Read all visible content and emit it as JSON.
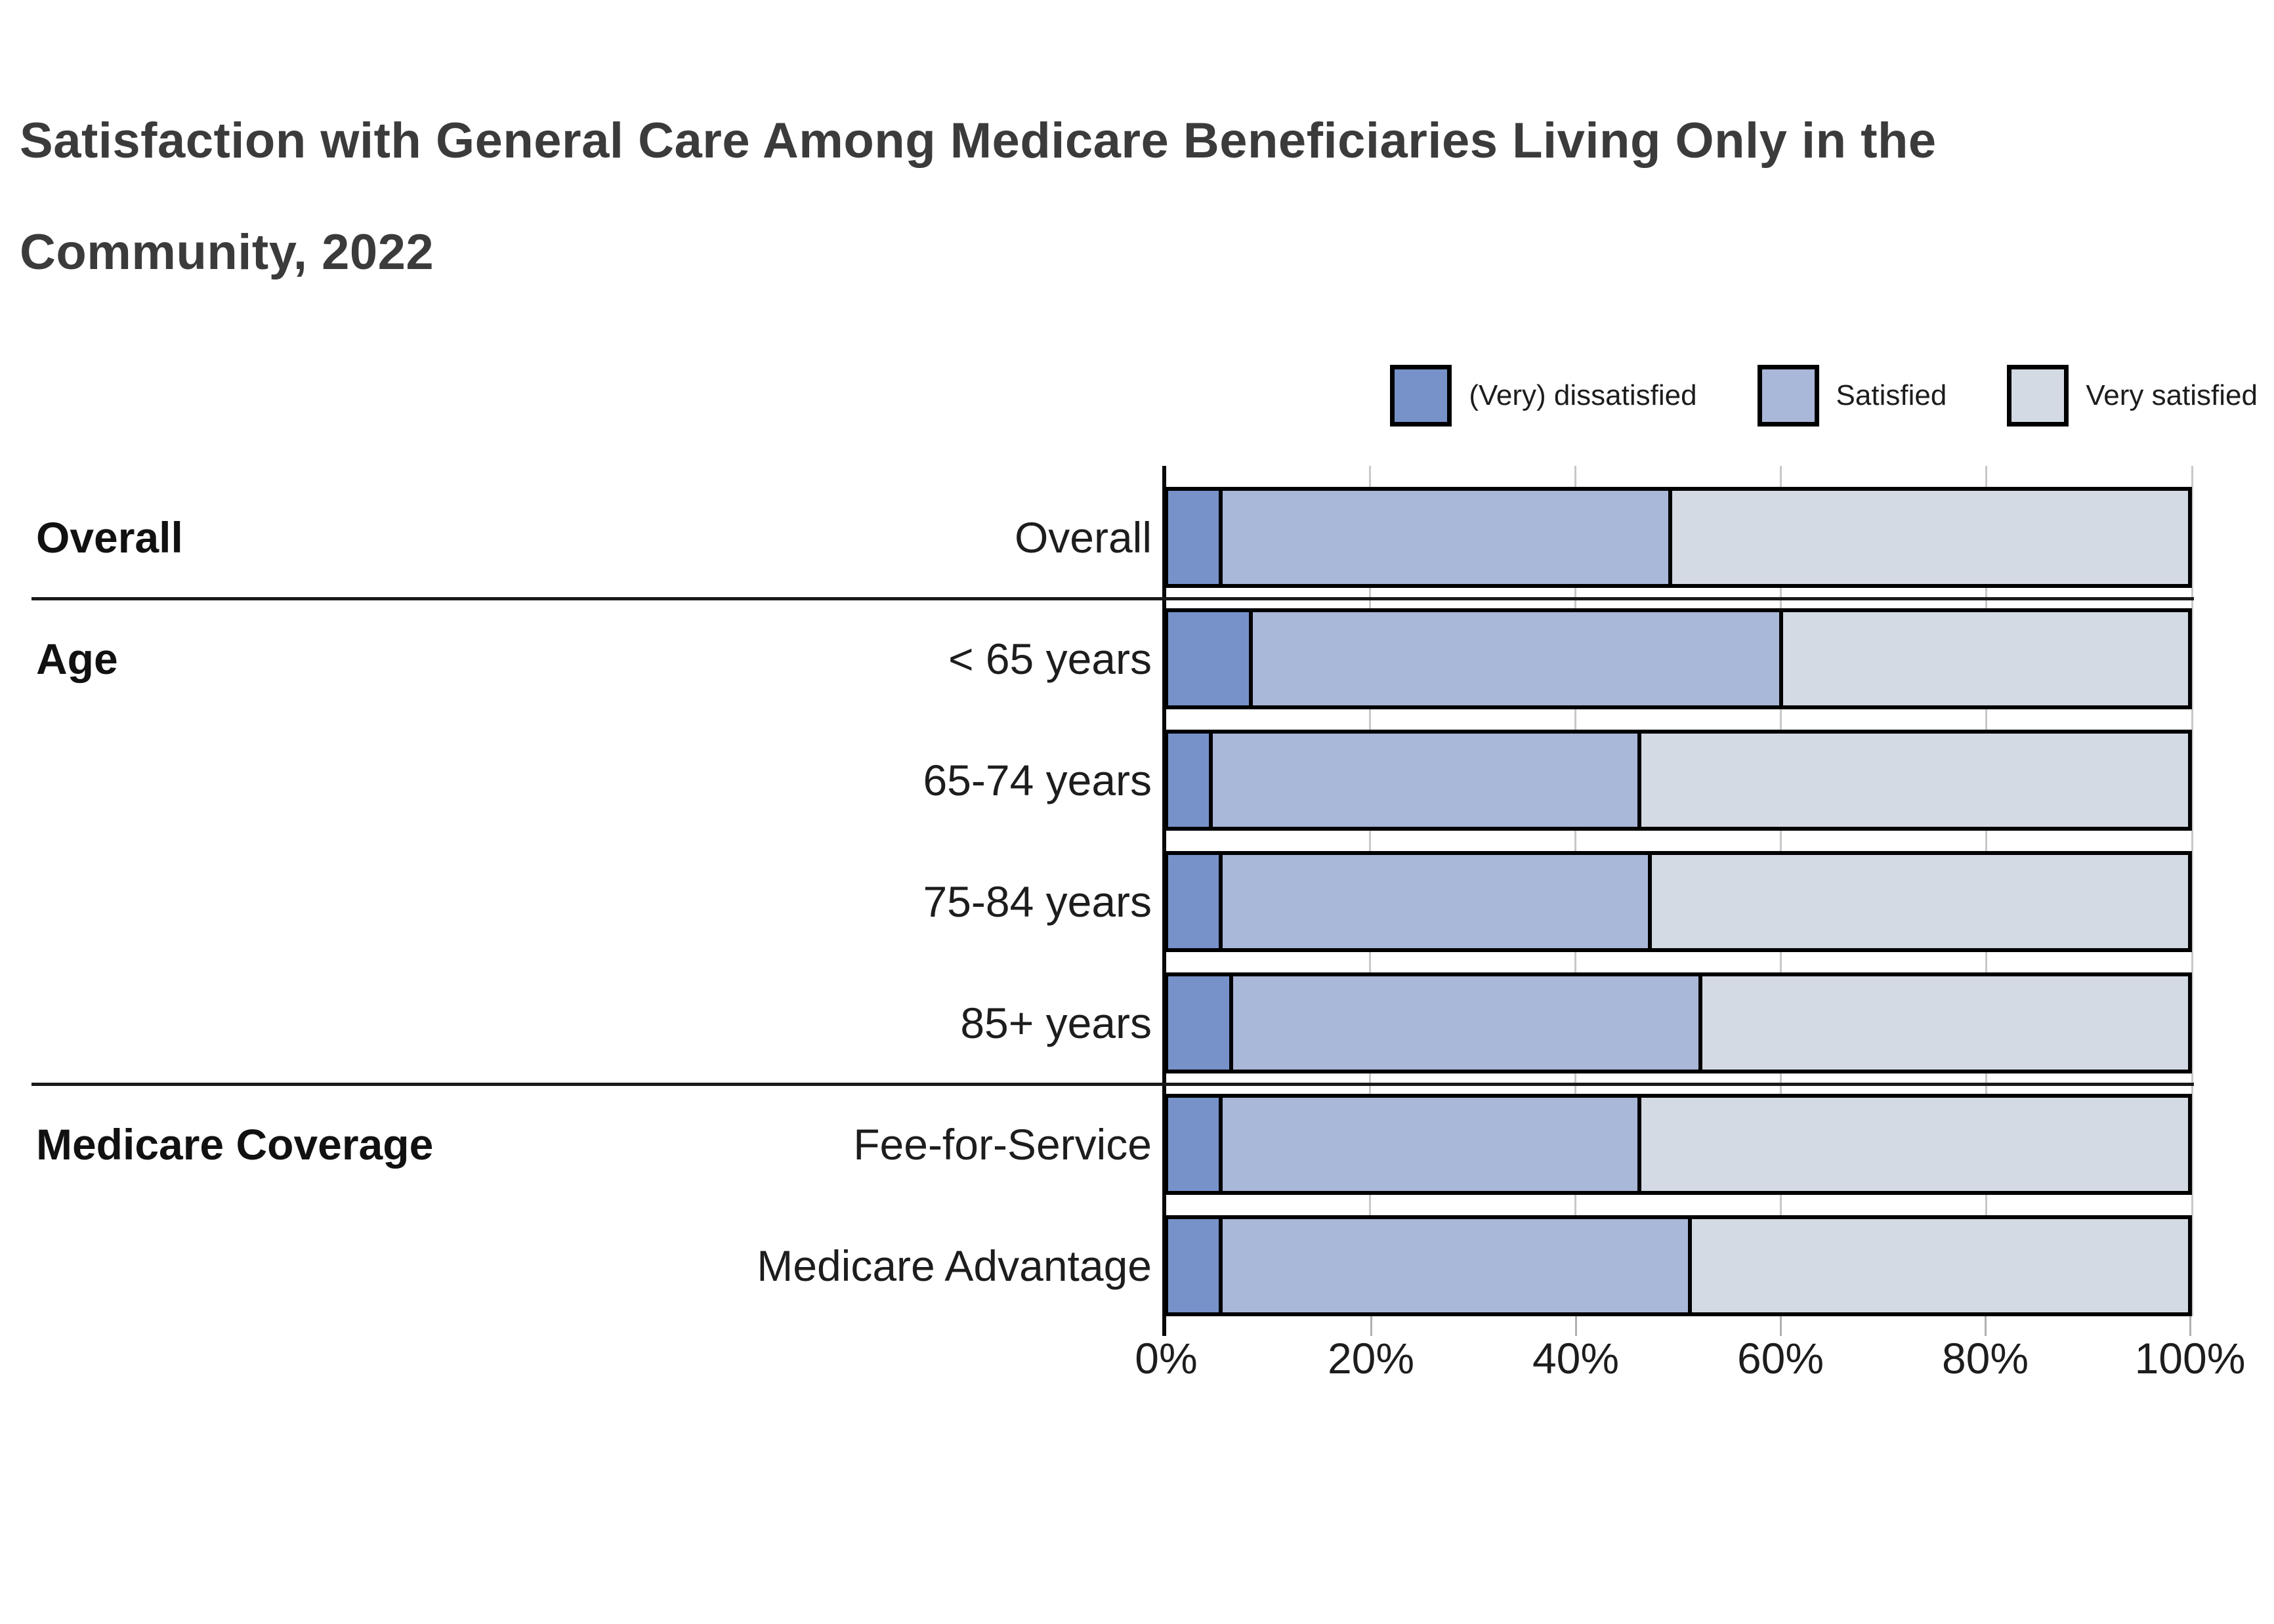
{
  "title": {
    "line1": "Satisfaction with General Care Among Medicare Beneficiaries Living Only in the",
    "line2": "Community, 2022"
  },
  "legend": {
    "items": [
      {
        "label": "(Very) dissatisfied",
        "color": "#7792c9"
      },
      {
        "label": "Satisfied",
        "color": "#a9b7d8"
      },
      {
        "label": "Very satisfied",
        "color": "#d4dae3"
      }
    ]
  },
  "colors": {
    "dissatisfied": "#7792c9",
    "satisfied": "#a9b7d8",
    "very_satisfied": "#d4dae3",
    "bar_border": "#000000",
    "gridline": "#c8c8c8",
    "axis": "#0a0a0a",
    "text": "#1d1d1d",
    "title_text": "#3b3b3b"
  },
  "chart_data": {
    "type": "bar",
    "stacked": true,
    "orientation": "horizontal",
    "unit": "percent",
    "title": "Satisfaction with General Care Among Medicare Beneficiaries Living Only in the Community, 2022",
    "series_names": [
      "(Very) dissatisfied",
      "Satisfied",
      "Very satisfied"
    ],
    "x_axis": {
      "range": [
        0,
        100
      ],
      "tick_labels": [
        "0%",
        "20%",
        "40%",
        "60%",
        "80%",
        "100%"
      ],
      "grid": true
    },
    "legend_position": "top-right",
    "groups": [
      {
        "group": "Overall",
        "rows": [
          {
            "label": "Overall",
            "values": [
              5,
              44,
              51
            ]
          }
        ]
      },
      {
        "group": "Age",
        "rows": [
          {
            "label": "< 65 years",
            "values": [
              8,
              52,
              40
            ]
          },
          {
            "label": "65-74 years",
            "values": [
              4,
              42,
              54
            ]
          },
          {
            "label": "75-84 years",
            "values": [
              5,
              42,
              53
            ]
          },
          {
            "label": "85+ years",
            "values": [
              6,
              46,
              48
            ]
          }
        ]
      },
      {
        "group": "Medicare Coverage",
        "rows": [
          {
            "label": "Fee-for-Service",
            "values": [
              5,
              41,
              54
            ]
          },
          {
            "label": "Medicare Advantage",
            "values": [
              5,
              46,
              49
            ]
          }
        ]
      }
    ]
  }
}
